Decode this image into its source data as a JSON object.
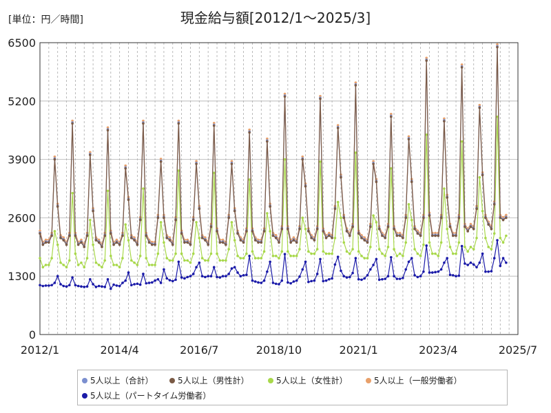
{
  "chart_data": {
    "type": "line",
    "title": "現金給与額[2012/1～2025/3]",
    "unit_label": "[単位：円／時間]",
    "x_ticks": [
      "2012/1",
      "2014/4",
      "2016/7",
      "2018/10",
      "2021/1",
      "2023/4",
      "2025/7"
    ],
    "x_range": [
      "2012-01",
      "2025-07"
    ],
    "y_ticks": [
      0,
      1300,
      2600,
      3900,
      5200,
      6500
    ],
    "ylim": [
      0,
      6500
    ],
    "grid": {
      "vertical": true,
      "horizontal": true
    },
    "legend_position": "bottom",
    "series": [
      {
        "name": "5人以上（合計）",
        "color": "#7b8fcf",
        "values": []
      },
      {
        "name": "5人以上（男性計）",
        "color": "#7a5a45"
      },
      {
        "name": "5人以上（女性計）",
        "color": "#a8d84a"
      },
      {
        "name": "5人以上（一般労働者）",
        "color": "#e8a06a"
      },
      {
        "name": "5人以上（パートタイム労働者）",
        "color": "#1a1aa8"
      }
    ],
    "x_start": "2012-01",
    "y_values": {
      "male": [
        2250,
        2000,
        2050,
        2050,
        2200,
        3900,
        2850,
        2150,
        2100,
        2000,
        2200,
        4700,
        2200,
        2000,
        2050,
        1950,
        2200,
        4000,
        2750,
        2100,
        2050,
        1950,
        2200,
        4550,
        2250,
        2000,
        2050,
        2000,
        2200,
        3700,
        3000,
        2150,
        2100,
        2000,
        2550,
        4700,
        2200,
        2050,
        2000,
        2000,
        2600,
        3850,
        2600,
        2150,
        2100,
        2000,
        2550,
        4700,
        2250,
        2050,
        2050,
        2000,
        2550,
        3800,
        2800,
        2150,
        2100,
        2000,
        2400,
        4650,
        2300,
        2050,
        2050,
        2000,
        2600,
        3800,
        2750,
        2250,
        2100,
        2050,
        2300,
        4500,
        2300,
        2100,
        2050,
        2050,
        2300,
        4300,
        2850,
        2200,
        2150,
        2050,
        2350,
        5300,
        2350,
        2050,
        2100,
        2050,
        2350,
        3900,
        3300,
        2300,
        2150,
        2100,
        2350,
        5250,
        2300,
        2150,
        2200,
        2150,
        2800,
        4600,
        3500,
        2600,
        2300,
        2200,
        2400,
        5550,
        2250,
        2150,
        2100,
        2050,
        2400,
        3800,
        3400,
        2350,
        2200,
        2150,
        2400,
        4850,
        2350,
        2200,
        2200,
        2150,
        2600,
        4350,
        3400,
        2350,
        2250,
        2200,
        2600,
        6100,
        2650,
        2200,
        2200,
        2200,
        2600,
        4750,
        3050,
        2400,
        2200,
        2200,
        2600,
        5950,
        2400,
        2300,
        2400,
        2350,
        2800,
        5050,
        3550,
        2600,
        2450,
        2350,
        2900,
        6400,
        2600,
        2550,
        2600
      ],
      "female": [
        1700,
        1500,
        1550,
        1550,
        1700,
        2300,
        2000,
        1600,
        1550,
        1500,
        1650,
        3150,
        1800,
        1550,
        1600,
        1500,
        1700,
        2550,
        2000,
        1600,
        1550,
        1500,
        1650,
        3200,
        1750,
        1550,
        1550,
        1500,
        1700,
        2450,
        2100,
        1650,
        1600,
        1550,
        1750,
        3250,
        1700,
        1550,
        1550,
        1550,
        1800,
        2500,
        2050,
        1700,
        1650,
        1650,
        1800,
        3650,
        1800,
        1650,
        1650,
        1600,
        1800,
        2500,
        2150,
        1700,
        1650,
        1650,
        1800,
        3600,
        1800,
        1650,
        1650,
        1650,
        1900,
        2500,
        2100,
        1750,
        1700,
        1700,
        1800,
        3450,
        1850,
        1700,
        1700,
        1700,
        1850,
        2700,
        2300,
        1750,
        1750,
        1700,
        1850,
        3900,
        1850,
        1750,
        1750,
        1750,
        1900,
        2600,
        2350,
        1850,
        1800,
        1800,
        1900,
        3850,
        1850,
        1800,
        1800,
        1800,
        2150,
        2950,
        2600,
        2050,
        1850,
        1800,
        1900,
        4050,
        1850,
        1750,
        1700,
        1700,
        1950,
        2650,
        2500,
        1900,
        1800,
        1750,
        1950,
        3700,
        1900,
        1750,
        1800,
        1750,
        2050,
        2900,
        2550,
        1900,
        1800,
        1750,
        2000,
        4450,
        2050,
        1800,
        1800,
        1750,
        2050,
        3250,
        2350,
        1950,
        1800,
        1800,
        2050,
        4300,
        1950,
        1850,
        1950,
        1900,
        2150,
        3500,
        2750,
        2150,
        1950,
        1900,
        2250,
        4850,
        2150,
        2050,
        2200
      ],
      "part": [
        1100,
        1080,
        1090,
        1090,
        1100,
        1150,
        1300,
        1120,
        1080,
        1070,
        1100,
        1270,
        1100,
        1080,
        1070,
        1060,
        1070,
        1230,
        1120,
        1060,
        1080,
        1070,
        1060,
        1230,
        1020,
        1110,
        1090,
        1080,
        1150,
        1200,
        1380,
        1100,
        1120,
        1130,
        1110,
        1350,
        1140,
        1150,
        1160,
        1200,
        1230,
        1150,
        1450,
        1250,
        1210,
        1190,
        1220,
        1620,
        1270,
        1250,
        1280,
        1300,
        1350,
        1500,
        1600,
        1300,
        1280,
        1300,
        1300,
        1500,
        1280,
        1270,
        1300,
        1300,
        1350,
        1470,
        1500,
        1380,
        1300,
        1320,
        1330,
        1750,
        1200,
        1180,
        1160,
        1150,
        1200,
        1400,
        1620,
        1150,
        1130,
        1120,
        1200,
        1790,
        1160,
        1140,
        1180,
        1200,
        1290,
        1450,
        1620,
        1170,
        1190,
        1200,
        1350,
        1680,
        1190,
        1200,
        1230,
        1250,
        1560,
        1730,
        1420,
        1300,
        1270,
        1280,
        1370,
        1700,
        1230,
        1220,
        1250,
        1320,
        1450,
        1550,
        1680,
        1220,
        1230,
        1240,
        1300,
        1720,
        1300,
        1240,
        1240,
        1260,
        1450,
        1620,
        1700,
        1320,
        1280,
        1300,
        1400,
        1980,
        1380,
        1380,
        1390,
        1400,
        1450,
        1600,
        1700,
        1330,
        1320,
        1300,
        1310,
        1970,
        1580,
        1550,
        1600,
        1560,
        1500,
        1600,
        1800,
        1400,
        1400,
        1410,
        1700,
        2100,
        1530,
        1700,
        1600
      ]
    }
  }
}
